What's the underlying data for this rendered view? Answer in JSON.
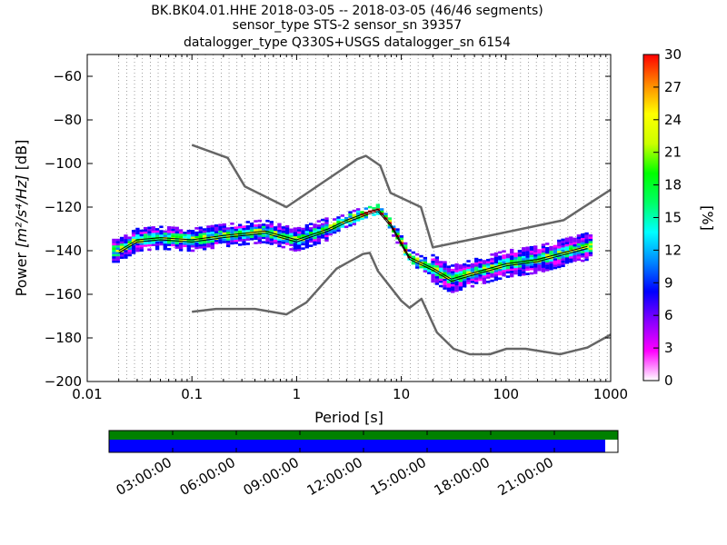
{
  "title_lines": [
    "BK.BK04.01.HHE   2018-03-05 -- 2018-03-05  (46/46 segments)",
    "sensor_type STS-2 sensor_sn 39357",
    "datalogger_type Q330S+USGS datalogger_sn 6154"
  ],
  "chart_data": {
    "type": "heatmap",
    "x_scale": "log",
    "xlim": [
      0.01,
      1000
    ],
    "ylim": [
      -200,
      -50
    ],
    "xlabel": "Period [s]",
    "ylabel_prefix": "Power ",
    "ylabel_math": "[m²/s⁴/Hz]",
    "ylabel_suffix": " [dB]",
    "x_ticks": [
      0.01,
      0.1,
      1,
      10,
      100,
      1000
    ],
    "x_tick_labels": [
      "0.01",
      "0.1",
      "1",
      "10",
      "100",
      "1000"
    ],
    "y_ticks": [
      -200,
      -180,
      -160,
      -140,
      -120,
      -100,
      -80,
      -60
    ],
    "y_tick_labels": [
      "−200",
      "−180",
      "−160",
      "−140",
      "−120",
      "−100",
      "−80",
      "−60"
    ],
    "grid": "dotted vertical at period bins",
    "noise_model_high": [
      [
        0.1,
        -91.5
      ],
      [
        0.22,
        -97.4
      ],
      [
        0.32,
        -110.5
      ],
      [
        0.8,
        -120
      ],
      [
        3.8,
        -98
      ],
      [
        4.6,
        -96.5
      ],
      [
        6.3,
        -101
      ],
      [
        7.9,
        -113.5
      ],
      [
        15.4,
        -120
      ],
      [
        20,
        -138.5
      ],
      [
        354.8,
        -126
      ],
      [
        1000,
        -112
      ]
    ],
    "noise_model_low": [
      [
        0.1,
        -168
      ],
      [
        0.17,
        -166.7
      ],
      [
        0.4,
        -166.7
      ],
      [
        0.8,
        -169.2
      ],
      [
        1.24,
        -163.7
      ],
      [
        2.4,
        -148.3
      ],
      [
        4.3,
        -141.5
      ],
      [
        5,
        -141
      ],
      [
        6,
        -149.4
      ],
      [
        10,
        -163
      ],
      [
        12,
        -166.2
      ],
      [
        15.6,
        -162.1
      ],
      [
        21.9,
        -177.5
      ],
      [
        31.6,
        -185
      ],
      [
        45,
        -187.5
      ],
      [
        70,
        -187.5
      ],
      [
        101,
        -185
      ],
      [
        154,
        -185
      ],
      [
        328,
        -187.5
      ],
      [
        600,
        -184.4
      ],
      [
        1000,
        -178.5
      ]
    ],
    "mode_curve": [
      [
        0.02,
        -140
      ],
      [
        0.03,
        -135
      ],
      [
        0.05,
        -134
      ],
      [
        0.1,
        -135
      ],
      [
        0.2,
        -133
      ],
      [
        0.5,
        -131
      ],
      [
        1,
        -135
      ],
      [
        2,
        -130
      ],
      [
        3,
        -126
      ],
      [
        5,
        -122
      ],
      [
        6,
        -121
      ],
      [
        8,
        -128
      ],
      [
        12,
        -143
      ],
      [
        20,
        -148
      ],
      [
        30,
        -153
      ],
      [
        50,
        -150
      ],
      [
        100,
        -146
      ],
      [
        200,
        -144
      ],
      [
        500,
        -139
      ],
      [
        600,
        -138
      ]
    ],
    "mean_curve": [
      [
        0.02,
        -141
      ],
      [
        0.03,
        -136
      ],
      [
        0.05,
        -135
      ],
      [
        0.1,
        -136
      ],
      [
        0.2,
        -134
      ],
      [
        0.5,
        -132
      ],
      [
        1,
        -136
      ],
      [
        2,
        -131
      ],
      [
        3,
        -127
      ],
      [
        5,
        -123
      ],
      [
        6,
        -122
      ],
      [
        8,
        -129
      ],
      [
        12,
        -144
      ],
      [
        20,
        -149
      ],
      [
        30,
        -154
      ],
      [
        50,
        -151
      ],
      [
        100,
        -147
      ],
      [
        200,
        -145
      ],
      [
        500,
        -140
      ],
      [
        600,
        -139
      ]
    ],
    "colorbar": {
      "label": "[%]",
      "min": 0,
      "max": 30,
      "ticks": [
        0,
        3,
        6,
        9,
        12,
        15,
        18,
        21,
        24,
        27,
        30
      ],
      "tick_labels": [
        "0",
        "3",
        "6",
        "9",
        "12",
        "15",
        "18",
        "21",
        "24",
        "27",
        "30"
      ],
      "colors": [
        "#ffffff",
        "#ff00ff",
        "#8800ff",
        "#0000ff",
        "#0088ff",
        "#00ffff",
        "#00ff66",
        "#00ff00",
        "#ccff00",
        "#ffff00",
        "#ff8800",
        "#ff0000"
      ]
    },
    "colors": {
      "noise_model": "#666666",
      "mode_line": "#000000",
      "coverage_data": "#008000",
      "coverage_psd": "#0000ff"
    }
  },
  "coverage": {
    "psd_coverage_fraction": 0.975,
    "time_labels": [
      "03:00:00",
      "06:00:00",
      "09:00:00",
      "12:00:00",
      "15:00:00",
      "18:00:00",
      "21:00:00"
    ]
  }
}
